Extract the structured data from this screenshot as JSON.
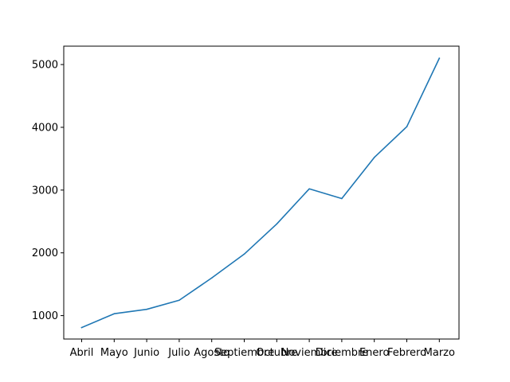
{
  "chart_data": {
    "type": "line",
    "title": "",
    "xlabel": "",
    "ylabel": "",
    "categories": [
      "Abril",
      "Mayo",
      "Junio",
      "Julio",
      "Agosto",
      "Septiembre",
      "Octubre",
      "Noviembre",
      "Diciembre",
      "Enero",
      "Febrero",
      "Marzo"
    ],
    "series": [
      {
        "values": [
          810,
          1030,
          1100,
          1245,
          1600,
          1980,
          2460,
          3020,
          2865,
          3520,
          4010,
          5100
        ],
        "color": "#1f77b4"
      }
    ],
    "yticks": [
      1000,
      2000,
      3000,
      4000,
      5000
    ],
    "ylim": [
      627,
      5293
    ],
    "grid": false,
    "legend": "none"
  }
}
